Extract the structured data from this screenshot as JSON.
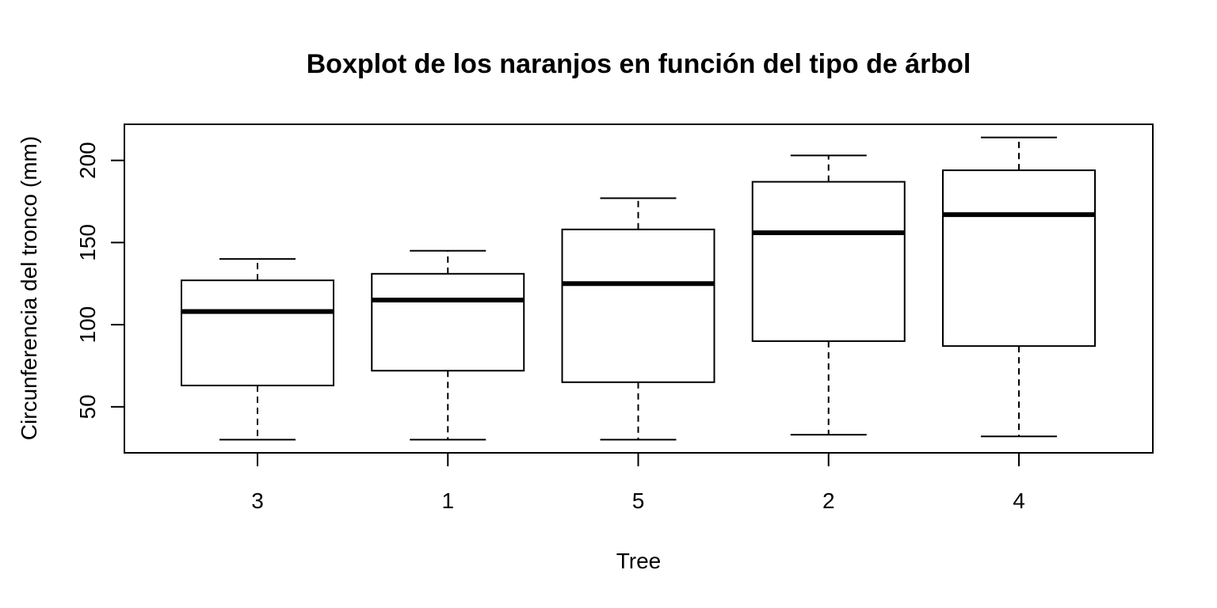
{
  "chart_data": {
    "type": "boxplot",
    "title": "Boxplot de los naranjos en función del tipo de árbol",
    "xlabel": "Tree",
    "ylabel": "Circunferencia del tronco (mm)",
    "ylim": [
      22,
      222
    ],
    "yticks": [
      50,
      100,
      150,
      200
    ],
    "categories": [
      "3",
      "1",
      "5",
      "2",
      "4"
    ],
    "boxes": [
      {
        "category": "3",
        "min": 30,
        "q1": 63,
        "median": 108,
        "q3": 127,
        "max": 140
      },
      {
        "category": "1",
        "min": 30,
        "q1": 72,
        "median": 115,
        "q3": 131,
        "max": 145
      },
      {
        "category": "5",
        "min": 30,
        "q1": 65,
        "median": 125,
        "q3": 158,
        "max": 177
      },
      {
        "category": "2",
        "min": 33,
        "q1": 90,
        "median": 156,
        "q3": 187,
        "max": 203
      },
      {
        "category": "4",
        "min": 32,
        "q1": 87,
        "median": 167,
        "q3": 194,
        "max": 214
      }
    ],
    "grid": false,
    "legend": "none",
    "colors": {
      "stroke": "#000000",
      "fill": "#ffffff"
    }
  }
}
